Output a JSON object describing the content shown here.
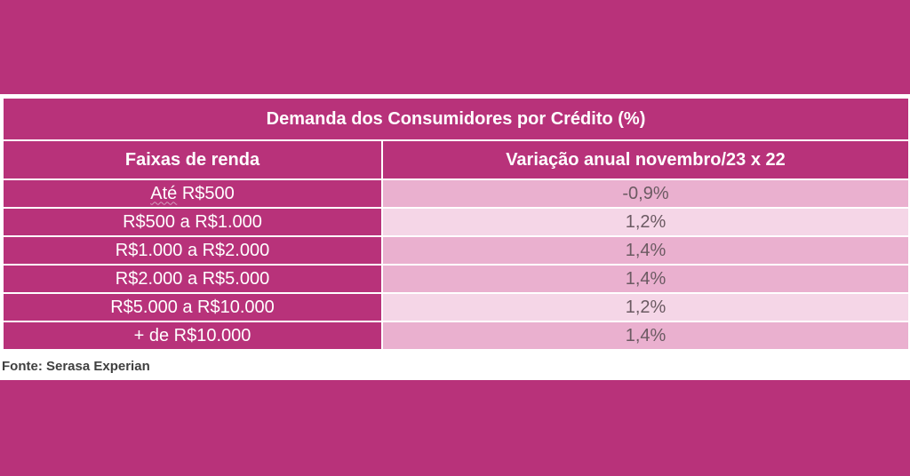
{
  "colors": {
    "background": "#b8327a",
    "header": "#b8327a",
    "row_shade_dark": "#eab0cf",
    "row_shade_light": "#f5d6e7",
    "value_text": "#6b5a62"
  },
  "table": {
    "title": "Demanda dos Consumidores por Crédito (%)",
    "headers": [
      "Faixas de renda",
      "Variação anual novembro/23 x 22"
    ],
    "rows": [
      {
        "first_word": "Até",
        "rest": " R$500",
        "value": "-0,9%"
      },
      {
        "range": "R$500 a R$1.000",
        "value": "1,2%"
      },
      {
        "range": "R$1.000 a R$2.000",
        "value": "1,4%"
      },
      {
        "range": "R$2.000 a R$5.000",
        "value": "1,4%"
      },
      {
        "range": "R$5.000 a R$10.000",
        "value": "1,2%"
      },
      {
        "range": "+ de R$10.000",
        "value": "1,4%"
      }
    ]
  },
  "source": "Fonte: Serasa Experian"
}
